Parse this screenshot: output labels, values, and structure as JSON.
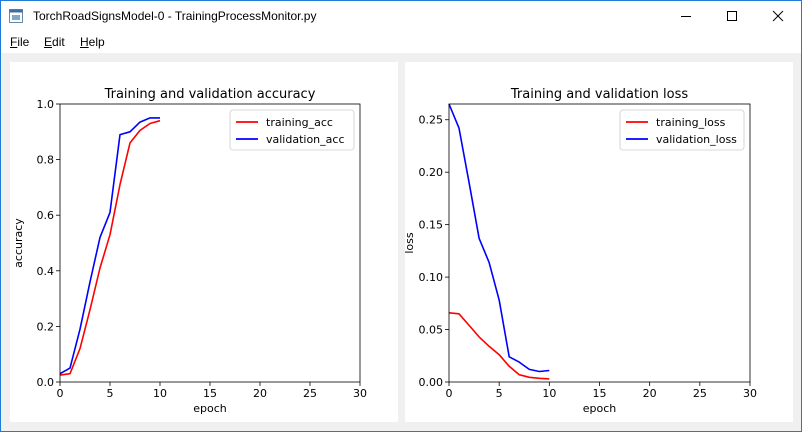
{
  "window": {
    "title": "TorchRoadSignsModel-0 - TrainingProcessMonitor.py",
    "icons": {
      "app": "python-window-icon",
      "minimize": "minimize-icon",
      "maximize": "maximize-icon",
      "close": "close-icon"
    }
  },
  "menu": {
    "items": [
      {
        "accel": "F",
        "rest": "ile"
      },
      {
        "accel": "E",
        "rest": "dit"
      },
      {
        "accel": "H",
        "rest": "elp"
      }
    ]
  },
  "colors": {
    "training": "#ff0000",
    "validation": "#0000ff"
  },
  "chart_data": [
    {
      "type": "line",
      "title": "Training and validation accuracy",
      "xlabel": "epoch",
      "ylabel": "accuracy",
      "xlim": [
        0,
        30
      ],
      "ylim": [
        0,
        1.0
      ],
      "xticks": [
        0,
        5,
        10,
        15,
        20,
        25,
        30
      ],
      "yticks": [
        0.0,
        0.2,
        0.4,
        0.6,
        0.8,
        1.0
      ],
      "xtick_labels": [
        "0",
        "5",
        "10",
        "15",
        "20",
        "25",
        "30"
      ],
      "ytick_labels": [
        "0.0",
        "0.2",
        "0.4",
        "0.6",
        "0.8",
        "1.0"
      ],
      "legend": "top-right",
      "grid": false,
      "x": [
        0,
        1,
        2,
        3,
        4,
        5,
        6,
        7,
        8,
        9,
        10
      ],
      "series": [
        {
          "name": "training_acc",
          "color": "#ff0000",
          "values": [
            0.025,
            0.03,
            0.12,
            0.26,
            0.41,
            0.53,
            0.71,
            0.86,
            0.905,
            0.93,
            0.94
          ]
        },
        {
          "name": "validation_acc",
          "color": "#0000ff",
          "values": [
            0.03,
            0.05,
            0.19,
            0.36,
            0.52,
            0.61,
            0.89,
            0.9,
            0.935,
            0.95,
            0.95
          ]
        }
      ]
    },
    {
      "type": "line",
      "title": "Training and validation loss",
      "xlabel": "epoch",
      "ylabel": "loss",
      "xlim": [
        0,
        30
      ],
      "ylim": [
        0,
        0.265
      ],
      "xticks": [
        0,
        5,
        10,
        15,
        20,
        25,
        30
      ],
      "yticks": [
        0.0,
        0.05,
        0.1,
        0.15,
        0.2,
        0.25
      ],
      "xtick_labels": [
        "0",
        "5",
        "10",
        "15",
        "20",
        "25",
        "30"
      ],
      "ytick_labels": [
        "0.00",
        "0.05",
        "0.10",
        "0.15",
        "0.20",
        "0.25"
      ],
      "legend": "top-right",
      "grid": false,
      "x": [
        0,
        1,
        2,
        3,
        4,
        5,
        6,
        7,
        8,
        9,
        10
      ],
      "series": [
        {
          "name": "training_loss",
          "color": "#ff0000",
          "values": [
            0.066,
            0.065,
            0.054,
            0.043,
            0.034,
            0.026,
            0.015,
            0.007,
            0.0045,
            0.0035,
            0.003
          ]
        },
        {
          "name": "validation_loss",
          "color": "#0000ff",
          "values": [
            0.265,
            0.242,
            0.19,
            0.137,
            0.114,
            0.078,
            0.024,
            0.019,
            0.012,
            0.01,
            0.011
          ]
        }
      ]
    }
  ]
}
